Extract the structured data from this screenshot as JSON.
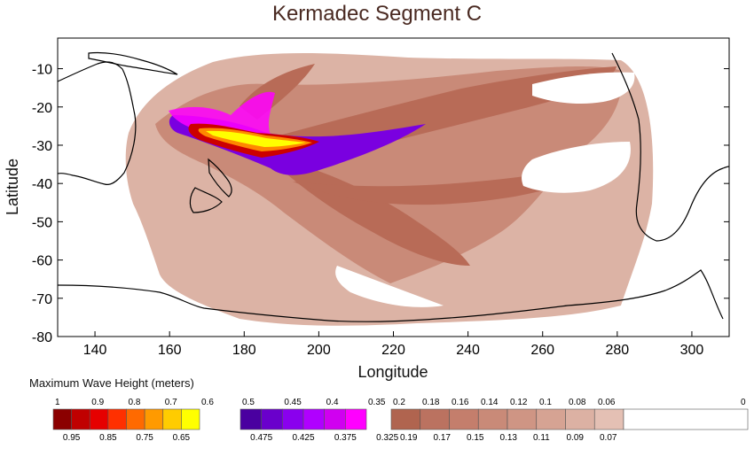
{
  "title": "Kermadec Segment C",
  "xlabel": "Longitude",
  "ylabel": "Latitude",
  "xticks": [
    "140",
    "160",
    "180",
    "200",
    "220",
    "240",
    "260",
    "280",
    "300"
  ],
  "yticks": [
    "-10",
    "-20",
    "-30",
    "-40",
    "-50",
    "-60",
    "-70",
    "-80"
  ],
  "legend_title": "Maximum Wave Height (meters)",
  "legend_groups": [
    {
      "top_labels": [
        "1",
        "0.9",
        "0.8",
        "0.7",
        "0.6"
      ],
      "bottom_labels": [
        "0.95",
        "0.85",
        "0.75",
        "0.65"
      ],
      "colors": [
        "#8b0000",
        "#c00000",
        "#e60000",
        "#ff3000",
        "#ff6a00",
        "#ff9a00",
        "#ffcc00",
        "#ffff00"
      ]
    },
    {
      "top_labels": [
        "0.5",
        "0.45",
        "0.4",
        "0.35"
      ],
      "bottom_labels": [
        "0.475",
        "0.425",
        "0.375",
        "0.325"
      ],
      "colors": [
        "#4a00a0",
        "#6a00cc",
        "#8a00ee",
        "#b000ff",
        "#d000f0",
        "#ff00ff"
      ]
    },
    {
      "top_labels": [
        "0.2",
        "0.18",
        "0.16",
        "0.14",
        "0.12",
        "0.1",
        "0.08",
        "0.06",
        "0"
      ],
      "bottom_labels": [
        "0.19",
        "0.17",
        "0.15",
        "0.13",
        "0.11",
        "0.09",
        "0.07"
      ],
      "colors": [
        "#b0644f",
        "#bb7260",
        "#c47e6c",
        "#c98a78",
        "#cf9584",
        "#d6a393",
        "#dcb1a3",
        "#e4c0b4",
        "#ffffff"
      ]
    }
  ],
  "map": {
    "lon_range": [
      130,
      310
    ],
    "lat_range": [
      -80,
      -2
    ],
    "colors": {
      "land_outline": "#000000",
      "deep": "#b86b57",
      "mid": "#c98a78",
      "light": "#dcb3a5",
      "purple": "#7a00e0",
      "magenta": "#ff00ff",
      "red": "#cc0000",
      "orange": "#ff8800",
      "yellow": "#ffff00"
    }
  }
}
